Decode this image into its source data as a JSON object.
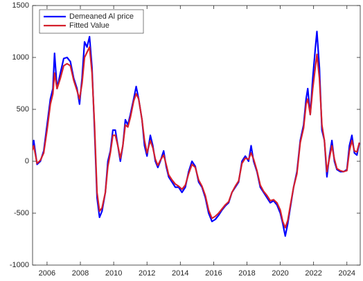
{
  "chart_data": {
    "type": "line",
    "x": [
      2005.1,
      2005.2,
      2005.4,
      2005.6,
      2005.8,
      2006.0,
      2006.2,
      2006.35,
      2006.45,
      2006.6,
      2006.8,
      2007.0,
      2007.2,
      2007.4,
      2007.6,
      2007.8,
      2007.95,
      2008.1,
      2008.25,
      2008.4,
      2008.55,
      2008.7,
      2008.85,
      2009.0,
      2009.15,
      2009.3,
      2009.5,
      2009.65,
      2009.8,
      2009.95,
      2010.1,
      2010.25,
      2010.4,
      2010.55,
      2010.7,
      2010.85,
      2011.0,
      2011.2,
      2011.35,
      2011.5,
      2011.7,
      2011.85,
      2012.0,
      2012.2,
      2012.35,
      2012.5,
      2012.65,
      2012.8,
      2013.0,
      2013.15,
      2013.3,
      2013.5,
      2013.7,
      2013.9,
      2014.1,
      2014.3,
      2014.5,
      2014.7,
      2014.9,
      2015.1,
      2015.3,
      2015.5,
      2015.7,
      2015.9,
      2016.1,
      2016.3,
      2016.5,
      2016.7,
      2016.9,
      2017.1,
      2017.3,
      2017.5,
      2017.7,
      2017.9,
      2018.1,
      2018.25,
      2018.4,
      2018.6,
      2018.8,
      2019.0,
      2019.2,
      2019.4,
      2019.6,
      2019.8,
      2020.0,
      2020.15,
      2020.3,
      2020.45,
      2020.6,
      2020.8,
      2021.0,
      2021.2,
      2021.4,
      2021.55,
      2021.65,
      2021.8,
      2021.95,
      2022.1,
      2022.2,
      2022.35,
      2022.5,
      2022.65,
      2022.8,
      2022.95,
      2023.1,
      2023.25,
      2023.4,
      2023.6,
      2023.8,
      2024.0,
      2024.15,
      2024.3,
      2024.45,
      2024.6,
      2024.75
    ],
    "series": [
      {
        "name": "Demeaned Al price",
        "color": "#0000ff",
        "values": [
          120,
          200,
          -30,
          0,
          100,
          350,
          600,
          700,
          1040,
          700,
          850,
          990,
          1000,
          960,
          800,
          700,
          550,
          800,
          1150,
          1100,
          1200,
          900,
          300,
          -350,
          -540,
          -480,
          -300,
          0,
          100,
          300,
          300,
          150,
          0,
          150,
          400,
          350,
          450,
          600,
          720,
          600,
          400,
          150,
          50,
          250,
          150,
          0,
          -60,
          0,
          100,
          -50,
          -150,
          -200,
          -250,
          -250,
          -300,
          -250,
          -100,
          0,
          -50,
          -200,
          -250,
          -350,
          -500,
          -580,
          -560,
          -520,
          -470,
          -430,
          -400,
          -300,
          -250,
          -200,
          0,
          50,
          0,
          150,
          0,
          -100,
          -250,
          -300,
          -350,
          -400,
          -380,
          -420,
          -500,
          -600,
          -720,
          -600,
          -450,
          -250,
          -100,
          200,
          350,
          600,
          700,
          450,
          800,
          1080,
          1250,
          900,
          300,
          200,
          -150,
          50,
          200,
          0,
          -80,
          -100,
          -100,
          -80,
          150,
          250,
          80,
          60,
          180
        ]
      },
      {
        "name": "Fitted Value",
        "color": "#d4202c",
        "values": [
          100,
          150,
          -20,
          10,
          80,
          300,
          550,
          650,
          850,
          700,
          800,
          920,
          940,
          920,
          780,
          680,
          600,
          750,
          1000,
          1050,
          1100,
          850,
          350,
          -300,
          -480,
          -450,
          -300,
          -50,
          80,
          250,
          250,
          150,
          30,
          150,
          350,
          330,
          420,
          580,
          650,
          600,
          400,
          200,
          80,
          200,
          130,
          20,
          -40,
          10,
          60,
          -30,
          -130,
          -180,
          -220,
          -240,
          -270,
          -230,
          -120,
          -30,
          -60,
          -180,
          -240,
          -330,
          -470,
          -550,
          -530,
          -500,
          -460,
          -420,
          -390,
          -300,
          -240,
          -190,
          -20,
          30,
          20,
          80,
          20,
          -90,
          -230,
          -290,
          -330,
          -380,
          -370,
          -400,
          -470,
          -580,
          -640,
          -570,
          -430,
          -250,
          -120,
          180,
          320,
          550,
          600,
          450,
          700,
          900,
          1030,
          800,
          350,
          200,
          -100,
          30,
          150,
          20,
          -70,
          -90,
          -100,
          -90,
          100,
          200,
          100,
          90,
          180
        ]
      }
    ],
    "xlim": [
      2005.13,
      2024.8
    ],
    "xticks": [
      2006,
      2008,
      2010,
      2012,
      2014,
      2016,
      2018,
      2020,
      2022,
      2024
    ],
    "ylim": [
      -1000,
      1500
    ],
    "yticks": [
      -1000,
      -500,
      0,
      500,
      1000,
      1500
    ],
    "legend": "upper left"
  }
}
